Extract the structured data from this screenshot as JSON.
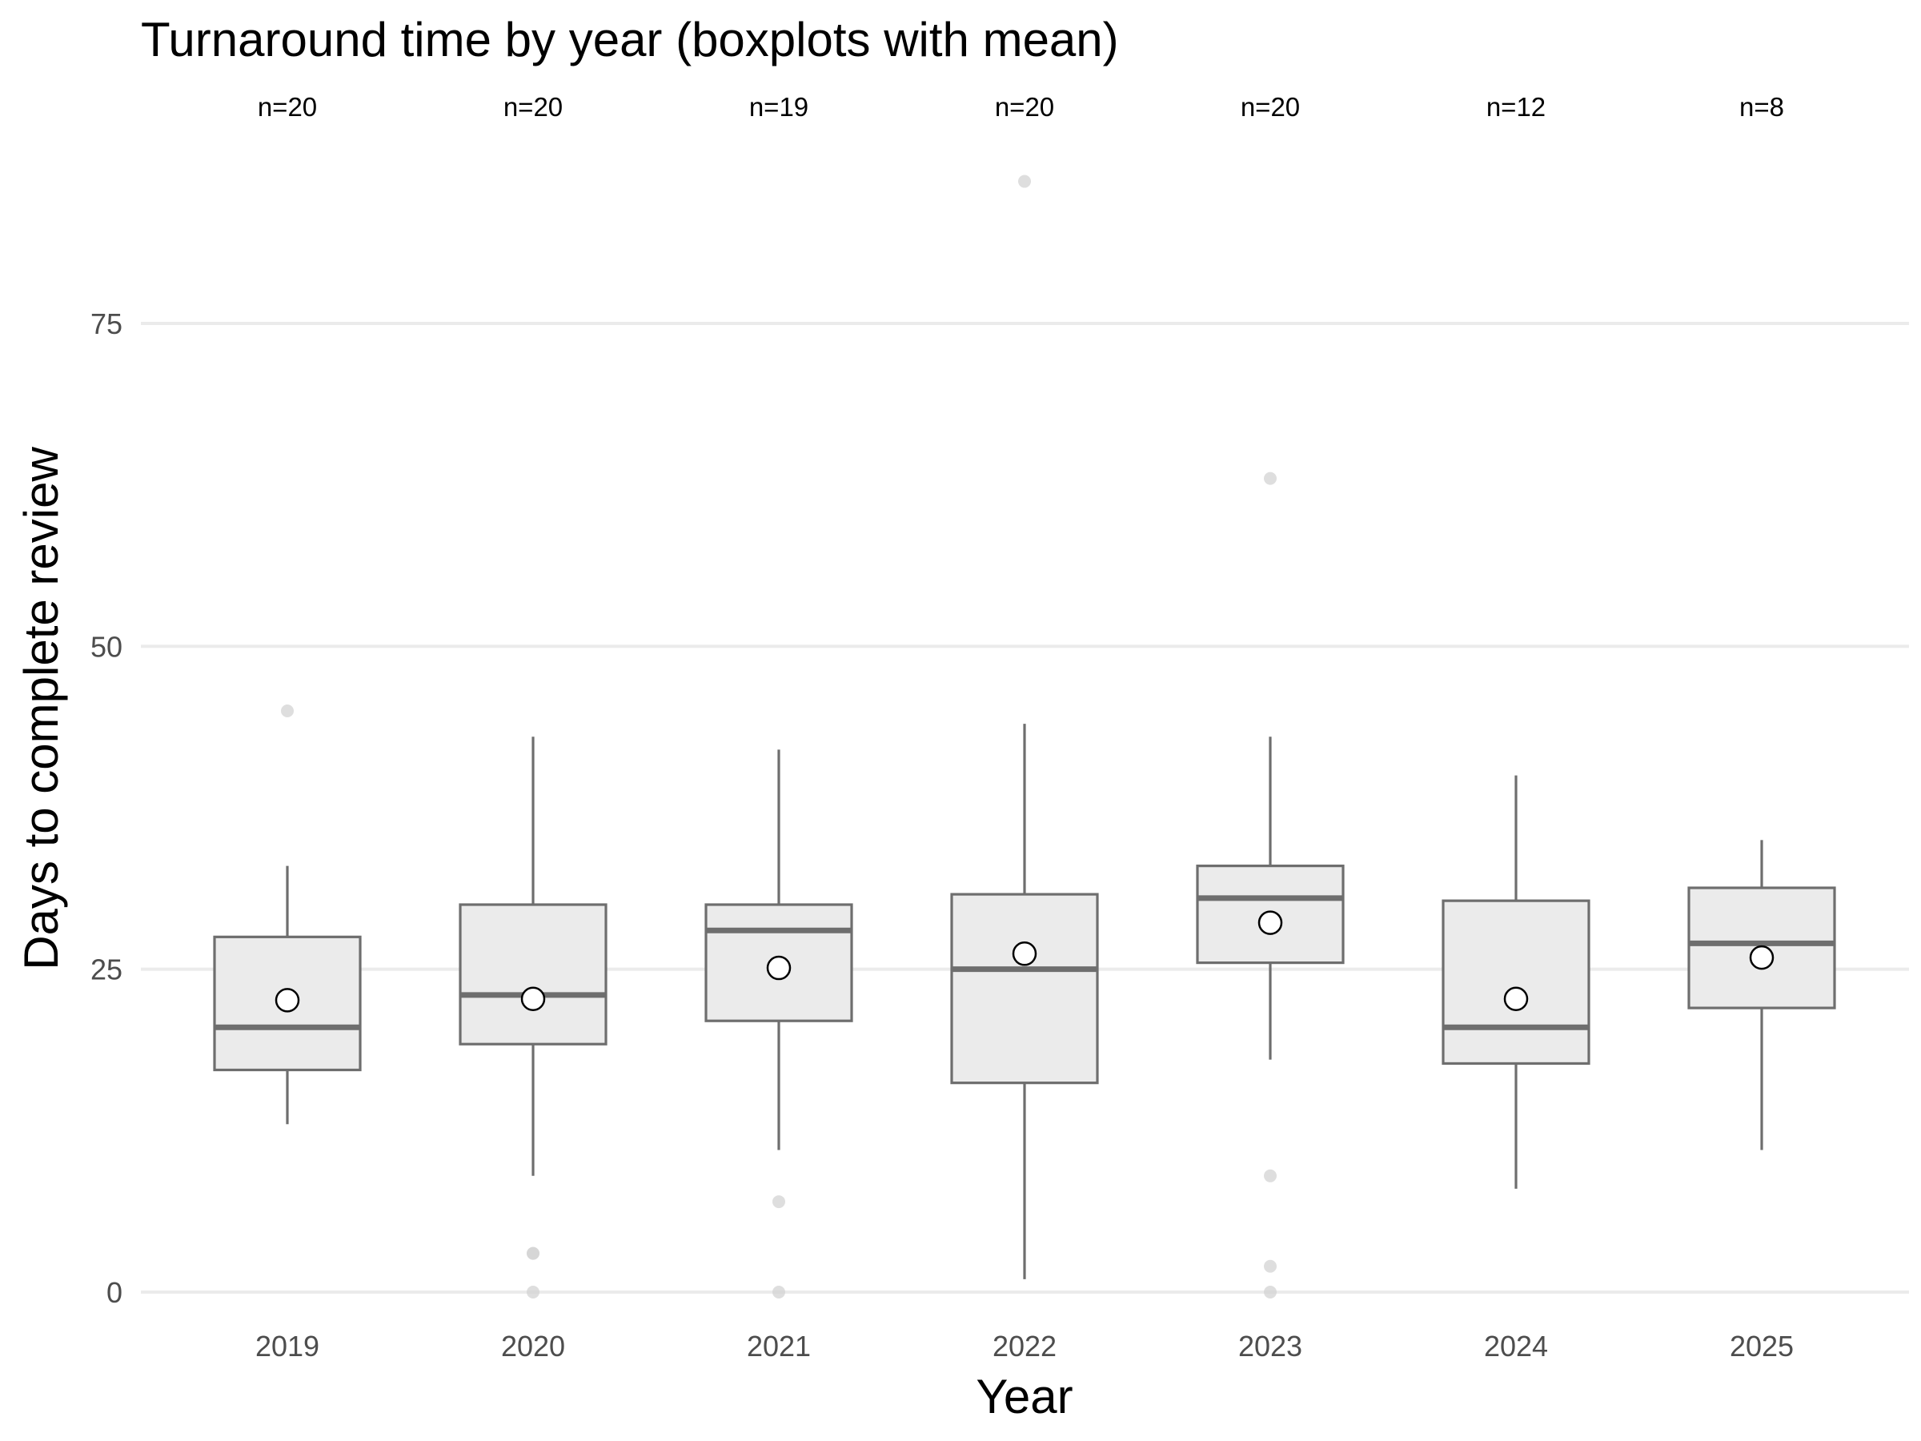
{
  "chart_data": {
    "type": "boxplot",
    "title": "Turnaround time by year (boxplots with mean)",
    "xlabel": "Year",
    "ylabel": "Days to complete review",
    "ylim": [
      -3,
      90
    ],
    "yticks": [
      0,
      25,
      50,
      75
    ],
    "grid": "horizontal",
    "categories": [
      "2019",
      "2020",
      "2021",
      "2022",
      "2023",
      "2024",
      "2025"
    ],
    "counts": [
      "n=20",
      "n=20",
      "n=19",
      "n=20",
      "n=20",
      "n=12",
      "n=8"
    ],
    "boxes": [
      {
        "year": "2019",
        "whisker_low": 13,
        "q1": 17.2,
        "median": 20.5,
        "q3": 27.5,
        "whisker_high": 33,
        "mean": 22.6,
        "outliers": [
          45
        ]
      },
      {
        "year": "2020",
        "whisker_low": 9,
        "q1": 19.2,
        "median": 23,
        "q3": 30,
        "whisker_high": 43,
        "mean": 22.7,
        "outliers": [
          3,
          3,
          0
        ]
      },
      {
        "year": "2021",
        "whisker_low": 11,
        "q1": 21,
        "median": 28,
        "q3": 30,
        "whisker_high": 42,
        "mean": 25.1,
        "outliers": [
          7,
          0
        ]
      },
      {
        "year": "2022",
        "whisker_low": 1,
        "q1": 16.2,
        "median": 25,
        "q3": 30.8,
        "whisker_high": 44,
        "mean": 26.2,
        "outliers": [
          86
        ]
      },
      {
        "year": "2023",
        "whisker_low": 18,
        "q1": 25.5,
        "median": 30.5,
        "q3": 33,
        "whisker_high": 43,
        "mean": 28.6,
        "outliers": [
          63,
          9,
          2,
          0
        ]
      },
      {
        "year": "2024",
        "whisker_low": 8,
        "q1": 17.7,
        "median": 20.5,
        "q3": 30.3,
        "whisker_high": 40,
        "mean": 22.7,
        "outliers": []
      },
      {
        "year": "2025",
        "whisker_low": 11,
        "q1": 22,
        "median": 27,
        "q3": 31.3,
        "whisker_high": 35,
        "mean": 25.9,
        "outliers": []
      }
    ],
    "colors": {
      "box_fill": "#ebebeb",
      "box_stroke": "#6e6e6e",
      "outlier": "#d3d3d3",
      "mean_fill": "#ffffff",
      "mean_stroke": "#000000",
      "grid": "#ebebeb"
    }
  }
}
